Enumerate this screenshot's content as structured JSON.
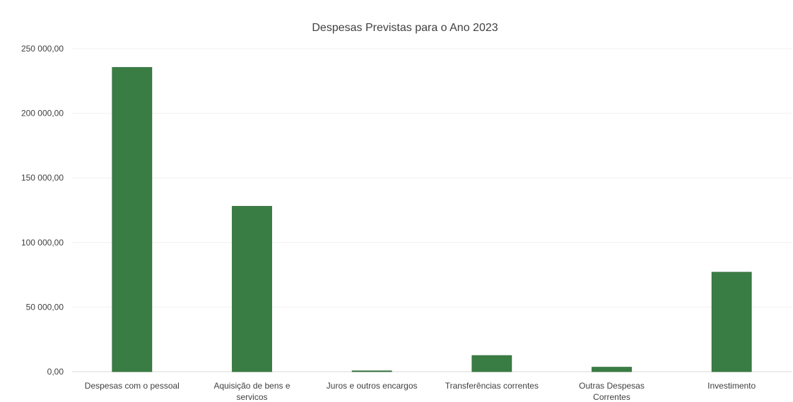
{
  "chart_data": {
    "type": "bar",
    "title": "Despesas Previstas para o Ano 2023",
    "xlabel": "",
    "ylabel": "",
    "categories": [
      "Despesas com o pessoal",
      "Aquisição de bens e servicos",
      "Juros e outros encargos",
      "Transferências correntes",
      "Outras Despesas Correntes",
      "Investimento"
    ],
    "values": [
      235500,
      128000,
      500,
      12500,
      3500,
      77000
    ],
    "ylim": [
      0,
      250000
    ],
    "yticks": [
      0,
      50000,
      100000,
      150000,
      200000,
      250000
    ],
    "ytick_labels": [
      "0,00",
      "50 000,00",
      "100 000,00",
      "150 000,00",
      "200 000,00",
      "250 000,00"
    ],
    "grid": true,
    "legend": "none",
    "colors": {
      "bar": "#3a7d44",
      "bar_edge": "#2f6a38",
      "grid": "#f0f0f0",
      "axis": "#d9d9d9",
      "text": "#404040",
      "title": "#404040"
    }
  }
}
